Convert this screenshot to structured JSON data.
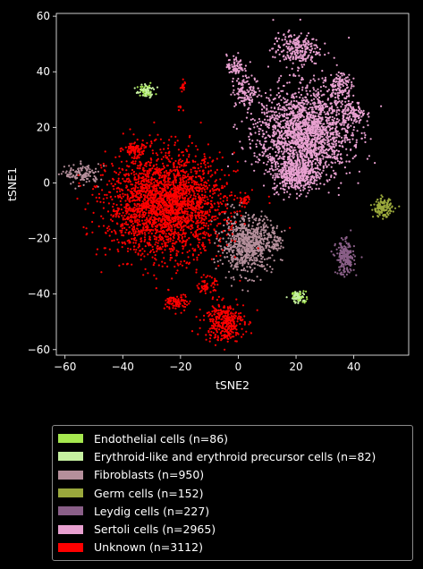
{
  "chart_data": {
    "type": "scatter",
    "xlabel": "tSNE2",
    "ylabel": "tSNE1",
    "xlim": [
      -63,
      59
    ],
    "ylim": [
      -62,
      61
    ],
    "xticks": [
      -60,
      -40,
      -20,
      0,
      20,
      40
    ],
    "yticks": [
      -60,
      -40,
      -20,
      0,
      20,
      40,
      60
    ],
    "grid": false,
    "legend_position": "below plot",
    "series": [
      {
        "name": "Endothelial cells (n=86)",
        "color": "#a6e84f",
        "clusters": [
          {
            "cx": -32,
            "cy": 33,
            "sx": 1.6,
            "sy": 1.0,
            "n": 44
          },
          {
            "cx": 21,
            "cy": -41,
            "sx": 1.2,
            "sy": 1.0,
            "n": 42
          }
        ]
      },
      {
        "name": "Erythroid-like and erythroid precursor cells (n=82)",
        "color": "#c6f0a0",
        "clusters": [
          {
            "cx": -32,
            "cy": 33,
            "sx": 1.5,
            "sy": 1.2,
            "n": 40
          },
          {
            "cx": 21,
            "cy": -41,
            "sx": 1.3,
            "sy": 1.1,
            "n": 42
          }
        ]
      },
      {
        "name": "Fibroblasts (n=950)",
        "color": "#b58f9b",
        "clusters": [
          {
            "cx": 3,
            "cy": -22,
            "sx": 4.5,
            "sy": 5.0,
            "n": 760
          },
          {
            "cx": 13,
            "cy": -21,
            "sx": 1.5,
            "sy": 2.0,
            "n": 60
          },
          {
            "cx": -54,
            "cy": 3,
            "sx": 3.0,
            "sy": 1.8,
            "n": 130
          }
        ]
      },
      {
        "name": "Germ cells (n=152)",
        "color": "#9aa83c",
        "clusters": [
          {
            "cx": 50,
            "cy": -9,
            "sx": 1.6,
            "sy": 1.6,
            "n": 152
          }
        ]
      },
      {
        "name": "Leydig cells (n=227)",
        "color": "#8a5f88",
        "clusters": [
          {
            "cx": 37,
            "cy": -27,
            "sx": 1.6,
            "sy": 3.0,
            "n": 227
          }
        ]
      },
      {
        "name": "Sertoli cells (n=2965)",
        "color": "#e8a0d0",
        "clusters": [
          {
            "cx": 23,
            "cy": 18,
            "sx": 8.0,
            "sy": 8.0,
            "n": 1900
          },
          {
            "cx": 20,
            "cy": 3,
            "sx": 4.0,
            "sy": 3.0,
            "n": 400
          },
          {
            "cx": 20,
            "cy": 48,
            "sx": 4.0,
            "sy": 3.0,
            "n": 250
          },
          {
            "cx": -1,
            "cy": 42,
            "sx": 1.5,
            "sy": 2.0,
            "n": 80
          },
          {
            "cx": 3,
            "cy": 33,
            "sx": 2.5,
            "sy": 2.5,
            "n": 120
          },
          {
            "cx": 35,
            "cy": 35,
            "sx": 2.0,
            "sy": 3.0,
            "n": 120
          },
          {
            "cx": 40,
            "cy": 25,
            "sx": 2.0,
            "sy": 2.0,
            "n": 95
          }
        ]
      },
      {
        "name": "Unknown (n=3112)",
        "color": "#ff0000",
        "clusters": [
          {
            "cx": -25,
            "cy": -8,
            "sx": 10.0,
            "sy": 9.0,
            "n": 2500
          },
          {
            "cx": -5,
            "cy": -50,
            "sx": 3.5,
            "sy": 3.5,
            "n": 330
          },
          {
            "cx": -21,
            "cy": -43,
            "sx": 2.0,
            "sy": 1.5,
            "n": 90
          },
          {
            "cx": -11,
            "cy": -37,
            "sx": 1.5,
            "sy": 1.5,
            "n": 60
          },
          {
            "cx": -19,
            "cy": 35,
            "sx": 0.6,
            "sy": 1.0,
            "n": 16
          },
          {
            "cx": -20,
            "cy": 27,
            "sx": 0.5,
            "sy": 0.5,
            "n": 6
          },
          {
            "cx": 2,
            "cy": -6,
            "sx": 1.0,
            "sy": 1.0,
            "n": 30
          },
          {
            "cx": -36,
            "cy": 12,
            "sx": 2.0,
            "sy": 1.2,
            "n": 80
          }
        ]
      }
    ]
  }
}
